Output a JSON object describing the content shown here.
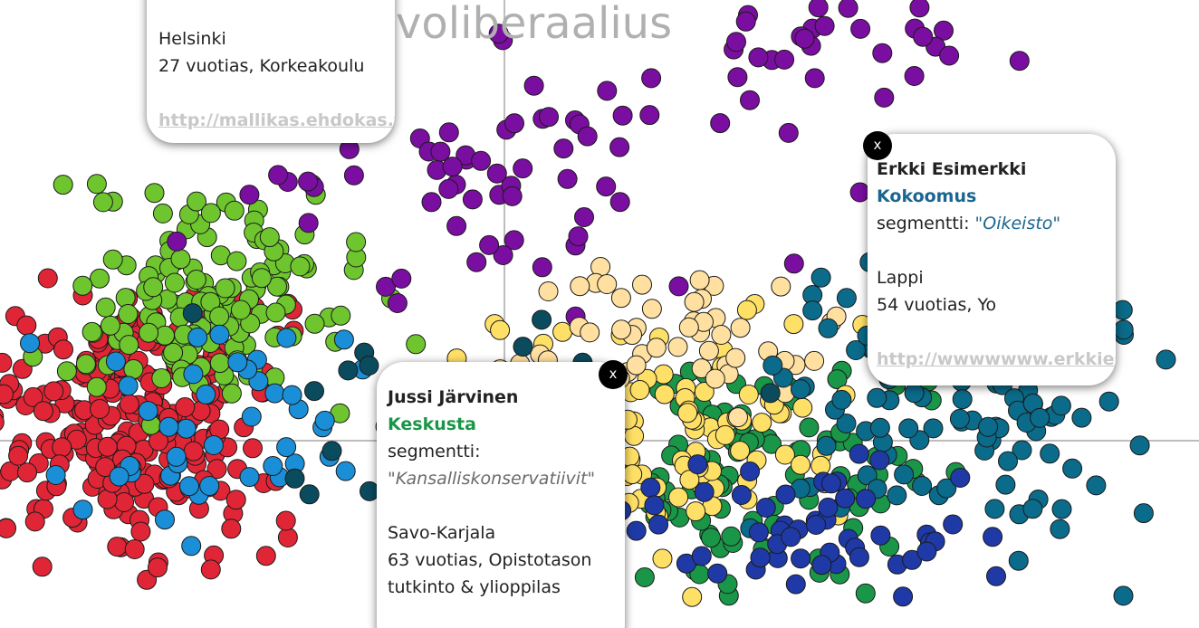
{
  "chart_data": {
    "type": "scatter",
    "quadrant_label": "voliberaalius",
    "series_colors": {
      "red": "#e02636",
      "light_green": "#6ec52d",
      "purple": "#7a0ea0",
      "dark_green": "#1a9648",
      "yellow": "#ffe066",
      "light_yellow": "#ffe0a0",
      "petrol": "#0b6b8a",
      "sky_blue": "#1a8fd8",
      "navy": "#1f3aa6",
      "dark_teal": "#0b4b5e"
    }
  },
  "cards": {
    "a": {
      "region": "Helsinki",
      "details": "27 vuotias, Korkeakoulu",
      "link": "http://mallikas.ehdokas.fi"
    },
    "b": {
      "close_label": "x",
      "name": "Erkki Esimerkki",
      "party": "Kokoomus",
      "party_color": "#1b6690",
      "segment_label": "segmentti:",
      "segment_value": "\"Oikeisto\"",
      "segment_color": "#1b6690",
      "region": "Lappi",
      "details": "54 vuotias, Yo",
      "link": "http://wwwwwww.erkkiesimerkki.fi"
    },
    "c": {
      "close_label": "x",
      "name": "Jussi Järvinen",
      "party": "Keskusta",
      "party_color": "#1a9648",
      "segment_label": "segmentti:",
      "segment_value": "\"Kansalliskonservatiivit\"",
      "region": "Savo-Karjala",
      "details_line1": "63 vuotias, Opistotason",
      "details_line2": "tutkinto & ylioppilas"
    }
  }
}
